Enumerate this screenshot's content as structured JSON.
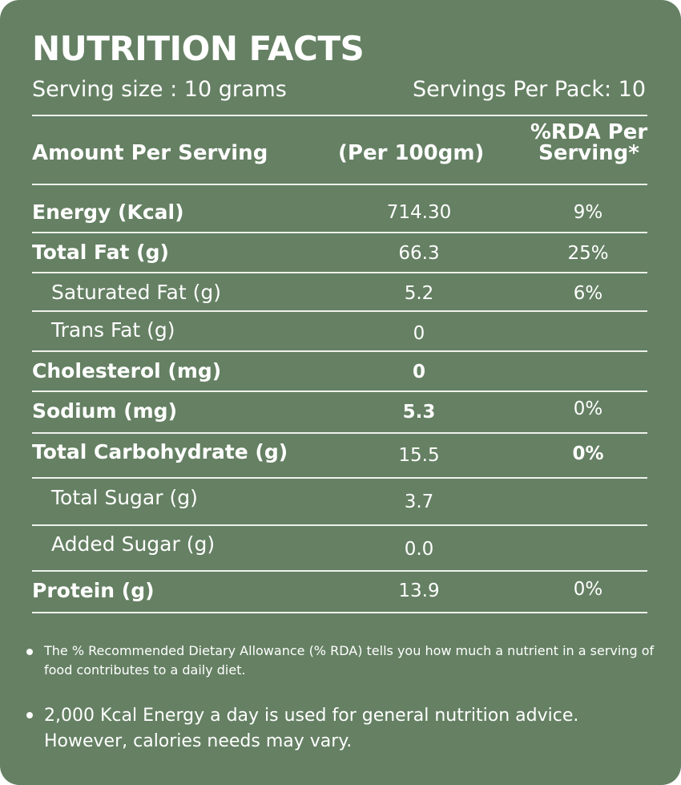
{
  "header": {
    "title": "NUTRITION FACTS",
    "serving_size": "Serving size : 10 grams",
    "servings_per_pack": "Servings Per Pack: 10"
  },
  "columns": {
    "amount": "Amount Per Serving",
    "per100": "(Per 100gm)",
    "rda_line1": "%RDA Per",
    "rda_line2": "Serving*"
  },
  "rows": [
    {
      "label": "Energy (Kcal)",
      "value": "714.30",
      "rda": "9%"
    },
    {
      "label": "Total Fat (g)",
      "value": "66.3",
      "rda": "25%"
    },
    {
      "label": "Saturated Fat (g)",
      "value": "5.2",
      "rda": "6%"
    },
    {
      "label": "Trans Fat (g)",
      "value": "0",
      "rda": ""
    },
    {
      "label": "Cholesterol (mg)",
      "value": "0",
      "rda": ""
    },
    {
      "label": "Sodium  (mg)",
      "value": "5.3",
      "rda": "0%"
    },
    {
      "label": "Total Carbohydrate (g)",
      "value": "15.5",
      "rda": "0%"
    },
    {
      "label": "Total Sugar (g)",
      "value": "3.7",
      "rda": ""
    },
    {
      "label": "Added Sugar (g)",
      "value": "0.0",
      "rda": ""
    },
    {
      "label": "Protein (g)",
      "value": "13.9",
      "rda": "0%"
    }
  ],
  "notes": [
    "The % Recommended Dietary Allowance (% RDA) tells you how much a nutrient in a serving of food contributes to a daily diet.",
    "2,000 Kcal Energy a day is used for general nutrition advice. However, calories needs may vary."
  ],
  "colors": {
    "background": "#658063",
    "text": "#ffffff"
  }
}
